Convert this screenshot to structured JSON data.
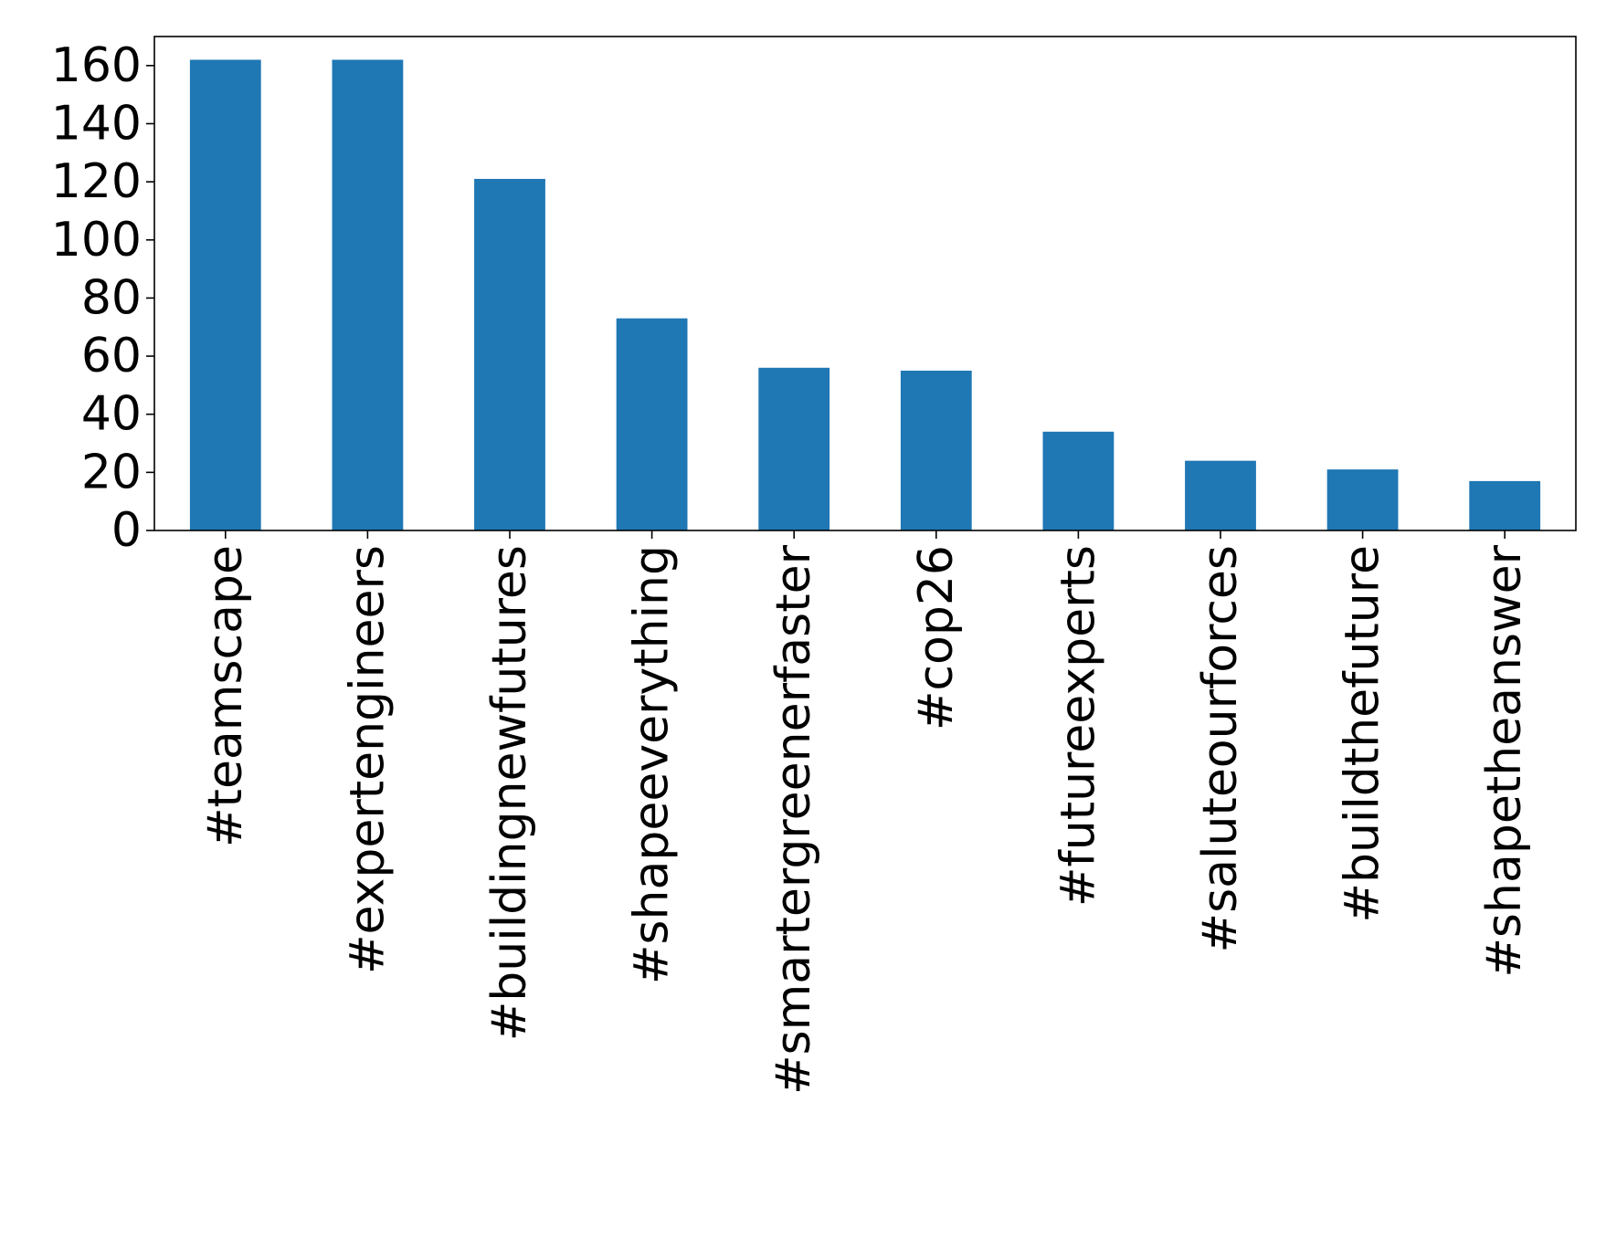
{
  "chart_data": {
    "type": "bar",
    "title": "",
    "xlabel": "",
    "ylabel": "",
    "categories": [
      "#teamscape",
      "#expertengineers",
      "#buildingnewfutures",
      "#shapeeverything",
      "#smartergreenerfaster",
      "#cop26",
      "#futureexperts",
      "#saluteourforces",
      "#buildthefuture",
      "#shapetheanswer"
    ],
    "values": [
      162,
      162,
      121,
      73,
      56,
      55,
      34,
      24,
      21,
      17
    ],
    "ylim": [
      0,
      170
    ],
    "yticks": [
      0,
      20,
      40,
      60,
      80,
      100,
      120,
      140,
      160
    ],
    "grid": false,
    "legend": "none",
    "bar_color": "#1f77b4"
  }
}
